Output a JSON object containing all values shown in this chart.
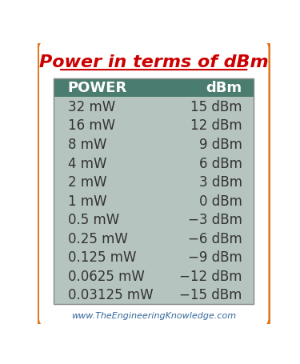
{
  "title": "Power in terms of dBm",
  "title_color": "#cc0000",
  "title_fontsize": 16,
  "header": [
    "POWER",
    "dBm"
  ],
  "header_bg": "#4a7c6f",
  "header_text_color": "#ffffff",
  "rows": [
    [
      "32 mW",
      "15 dBm"
    ],
    [
      "16 mW",
      "12 dBm"
    ],
    [
      "8 mW",
      "9 dBm"
    ],
    [
      "4 mW",
      "6 dBm"
    ],
    [
      "2 mW",
      "3 dBm"
    ],
    [
      "1 mW",
      "0 dBm"
    ],
    [
      "0.5 mW",
      "−3 dBm"
    ],
    [
      "0.25 mW",
      "−6 dBm"
    ],
    [
      "0.125 mW",
      "−9 dBm"
    ],
    [
      "0.0625 mW",
      "−12 dBm"
    ],
    [
      "0.03125 mW",
      "−15 dBm"
    ]
  ],
  "table_bg": "#b5c4be",
  "outer_bg": "#ffffff",
  "border_color": "#e07820",
  "footer": "www.TheEngineeringKnowledge.com",
  "footer_color": "#336699",
  "row_fontsize": 12,
  "header_fontsize": 13
}
